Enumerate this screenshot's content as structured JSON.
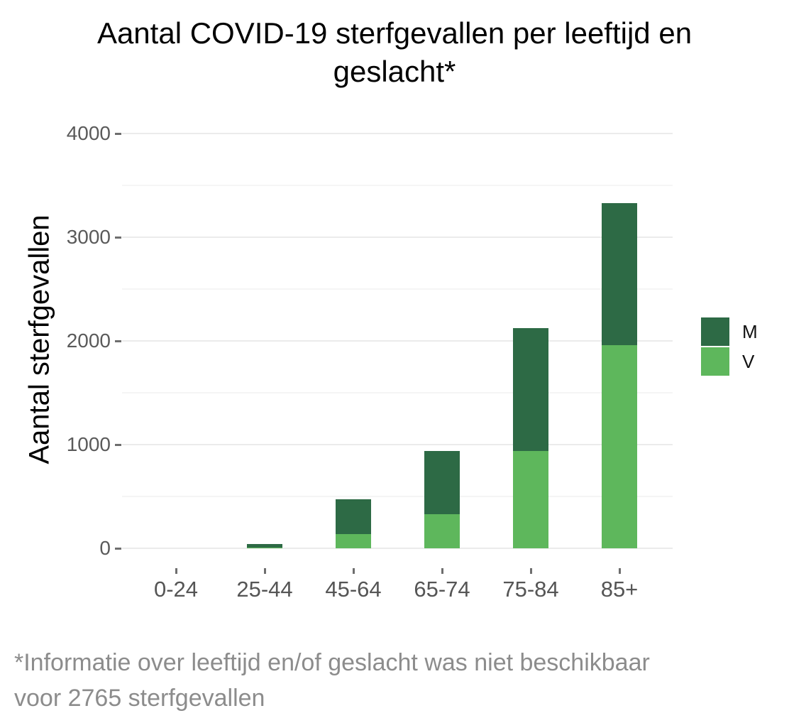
{
  "chart_data": {
    "type": "bar",
    "stacked": true,
    "title": "Aantal COVID-19 sterfgevallen per leeftijd en geslacht*",
    "title_lines": [
      "Aantal COVID-19 sterfgevallen per leeftijd en",
      "geslacht*"
    ],
    "ylabel": "Aantal sterfgevallen",
    "xlabel": "",
    "categories": [
      "0-24",
      "25-44",
      "45-64",
      "65-74",
      "75-84",
      "85+"
    ],
    "series": [
      {
        "name": "M",
        "color": "#2d6a45",
        "values": [
          0,
          30,
          330,
          610,
          1180,
          1370
        ]
      },
      {
        "name": "V",
        "color": "#5eb75c",
        "values": [
          0,
          10,
          140,
          330,
          940,
          1960
        ]
      }
    ],
    "stack_order_bottom_to_top": [
      "V",
      "M"
    ],
    "totals": [
      0,
      40,
      470,
      940,
      2120,
      3330
    ],
    "ylim": [
      0,
      4000
    ],
    "yticks": [
      0,
      1000,
      2000,
      3000,
      4000
    ],
    "minor_gridlines": [
      500,
      1500,
      2500,
      3500
    ],
    "grid": true,
    "legend_position": "right",
    "footnote": "*Informatie over leeftijd en/of geslacht was niet beschikbaar voor 2765 sterfgevallen",
    "footnote_lines": [
      "*Informatie over leeftijd en/of geslacht was niet beschikbaar",
      "voor 2765 sterfgevallen"
    ]
  },
  "colors": {
    "male_bar": "#2d6a45",
    "female_bar": "#5eb75c",
    "grid_major": "#ebebeb",
    "grid_minor": "#f5f5f5",
    "tick_mark": "#6e6e6e",
    "axis_text": "#5a5a5a",
    "title_text": "#000000",
    "footnote_text": "#8c8c8c",
    "background": "#ffffff"
  }
}
